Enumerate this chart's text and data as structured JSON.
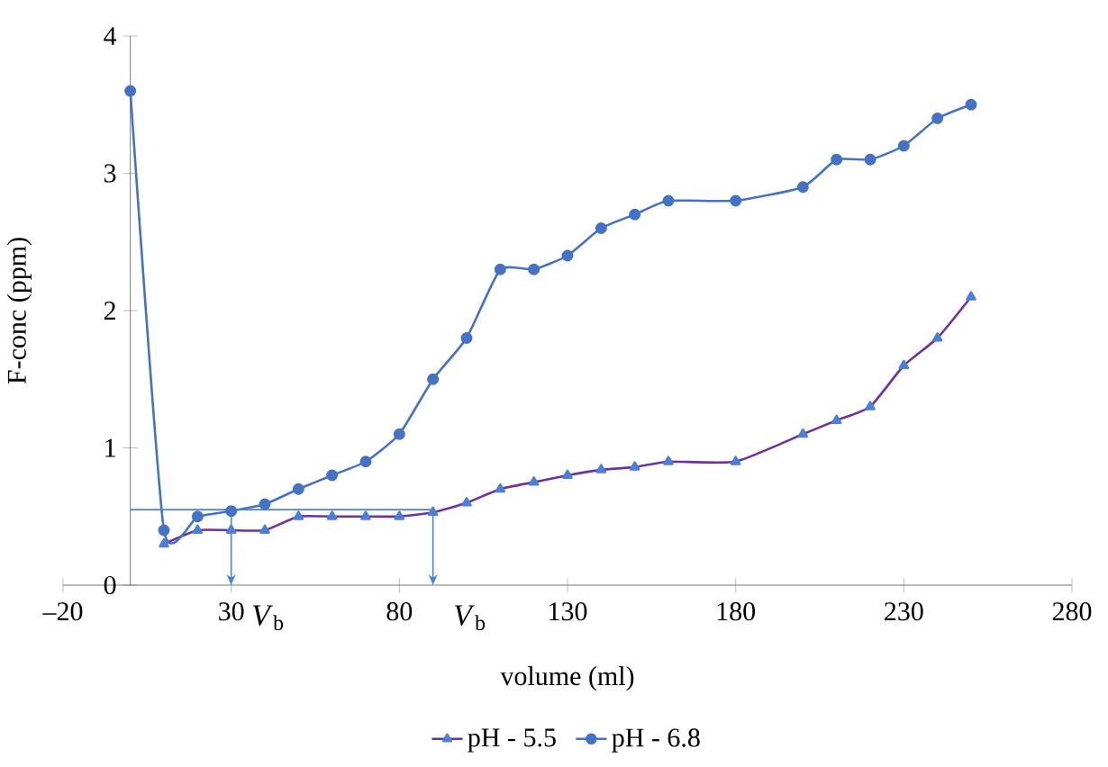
{
  "chart_data": {
    "type": "line",
    "xlabel": "volume (ml)",
    "ylabel": "F-conc (ppm)",
    "xlim": [
      -20,
      280
    ],
    "ylim": [
      0,
      4
    ],
    "xticks": [
      {
        "value": -20,
        "label": "–20"
      },
      30,
      80,
      130,
      180,
      230,
      280
    ],
    "yticks": [
      0,
      1,
      2,
      3,
      4
    ],
    "legend": "bottom",
    "series": [
      {
        "name": "pH - 5.5",
        "color": "#7030a0",
        "marker": "triangle",
        "x": [
          10,
          20,
          30,
          40,
          50,
          60,
          70,
          80,
          90,
          100,
          110,
          120,
          130,
          140,
          150,
          160,
          180,
          200,
          210,
          220,
          230,
          240,
          250
        ],
        "values": [
          0.3,
          0.4,
          0.4,
          0.4,
          0.5,
          0.5,
          0.5,
          0.5,
          0.53,
          0.6,
          0.7,
          0.75,
          0.8,
          0.84,
          0.86,
          0.9,
          0.9,
          1.1,
          1.2,
          1.3,
          1.6,
          1.8,
          2.1
        ]
      },
      {
        "name": "pH - 6.8",
        "color": "#4472c4",
        "marker": "circle",
        "x": [
          0,
          10,
          20,
          30,
          40,
          50,
          60,
          70,
          80,
          90,
          100,
          110,
          120,
          130,
          140,
          150,
          160,
          180,
          200,
          210,
          220,
          230,
          240,
          250
        ],
        "values": [
          3.6,
          0.4,
          0.5,
          0.54,
          0.59,
          0.7,
          0.8,
          0.9,
          1.1,
          1.5,
          1.8,
          2.3,
          2.3,
          2.4,
          2.6,
          2.7,
          2.8,
          2.8,
          2.9,
          3.1,
          3.1,
          3.2,
          3.4,
          3.5
        ]
      },
      {
        "type": "line",
        "color": "#4a80d8",
        "x": [
          0,
          90
        ],
        "values": [
          0.55,
          0.55
        ]
      }
    ],
    "annotations": [
      {
        "text": "*V*$_{b}$",
        "x": 30,
        "y": 0.55
      },
      {
        "text": "*V*$_{b}$",
        "x": 90,
        "y": 0.55
      }
    ]
  }
}
